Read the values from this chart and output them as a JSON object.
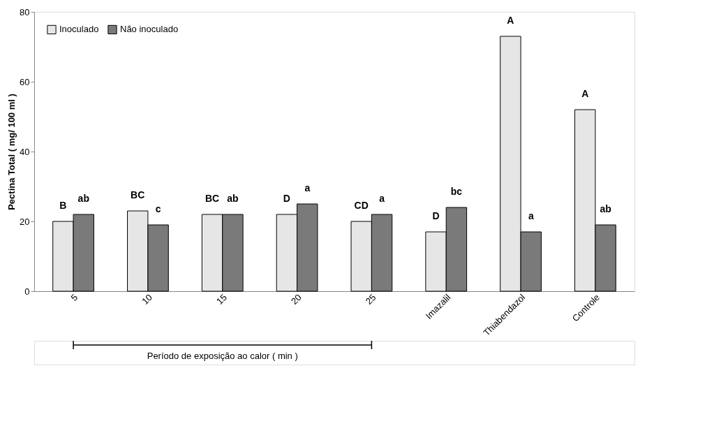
{
  "chart_data": {
    "type": "bar",
    "ylabel": "Pectina Total ( mg/ 100 ml )",
    "categories": [
      "5",
      "10",
      "15",
      "20",
      "25",
      "Imazalil",
      "Thiabendazol",
      "Controle"
    ],
    "series": [
      {
        "name": "Inoculado",
        "color": "#e6e6e6",
        "values": [
          20,
          23,
          22,
          22,
          20,
          17,
          73,
          52
        ]
      },
      {
        "name": "Não inoculado",
        "color": "#7a7a7a",
        "values": [
          22,
          19,
          22,
          25,
          22,
          24,
          17,
          19
        ]
      }
    ],
    "ylim": [
      0,
      80
    ],
    "yticks": [
      0,
      20,
      40,
      60,
      80
    ],
    "grid": false,
    "legend": "top left",
    "annotations": [
      {
        "text": "B",
        "x": "5",
        "y": 20
      },
      {
        "text": "ab",
        "x": "5",
        "y": 22
      },
      {
        "text": "BC",
        "x": "10",
        "y": 23
      },
      {
        "text": "c",
        "x": "10",
        "y": 19
      },
      {
        "text": "BC",
        "x": "15",
        "y": 22
      },
      {
        "text": "ab",
        "x": "15",
        "y": 22
      },
      {
        "text": "D",
        "x": "20",
        "y": 22
      },
      {
        "text": "a",
        "x": "20",
        "y": 25
      },
      {
        "text": "CD",
        "x": "25",
        "y": 20
      },
      {
        "text": "a",
        "x": "25",
        "y": 22
      },
      {
        "text": "D",
        "x": "Imazalil",
        "y": 17
      },
      {
        "text": "bc",
        "x": "Imazalil",
        "y": 24
      },
      {
        "text": "A",
        "x": "Thiabendazol",
        "y": 73
      },
      {
        "text": "a",
        "x": "Thiabendazol",
        "y": 17
      },
      {
        "text": "A",
        "x": "Controle",
        "y": 52
      },
      {
        "text": "ab",
        "x": "Controle",
        "y": 19
      },
      "Período de exposição ao calor ( min )"
    ]
  }
}
